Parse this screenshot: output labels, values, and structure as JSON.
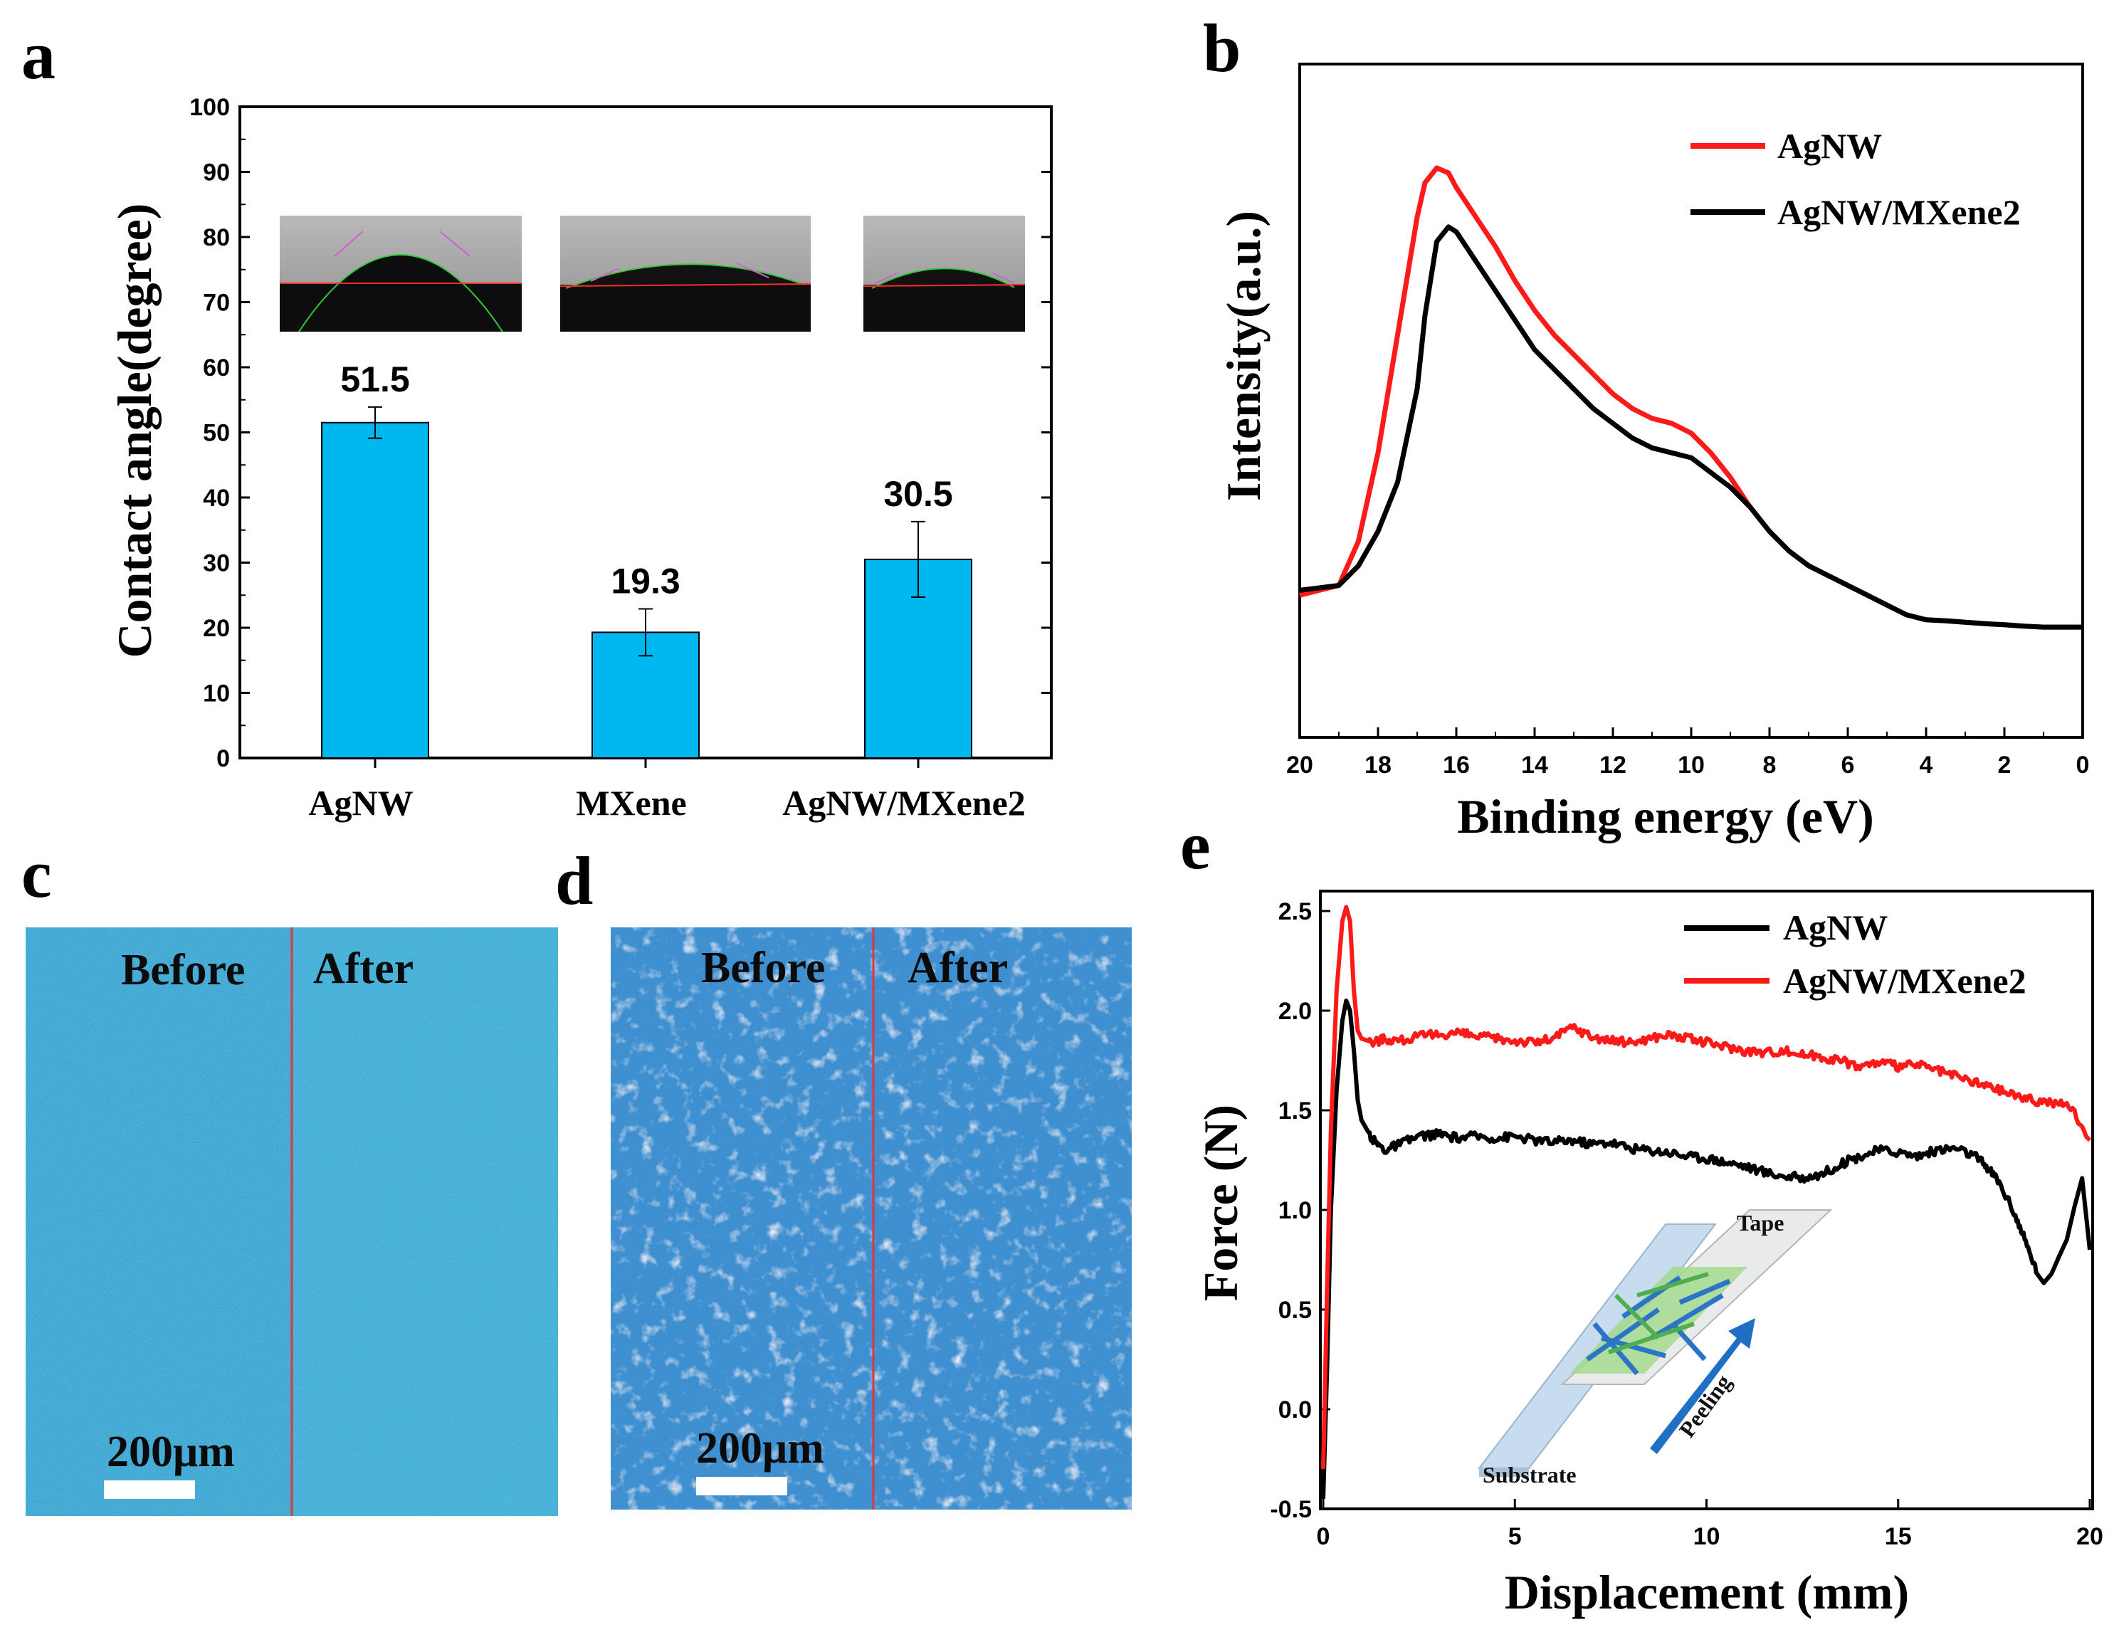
{
  "panels": {
    "a": "a",
    "b": "b",
    "c": "c",
    "d": "d",
    "e": "e"
  },
  "colors": {
    "bar_fill": "#00b7f0",
    "red": "#ff1a1a",
    "black": "#000000",
    "micro_blue": "#3aa6d2",
    "micro_blue_d": "#3b8fd0",
    "arrow_blue": "#1f6fc4"
  },
  "chart_data": [
    {
      "id": "a",
      "type": "bar",
      "title": "",
      "categories": [
        "AgNW",
        "MXene",
        "AgNW/MXene2"
      ],
      "values": [
        51.5,
        19.3,
        30.5
      ],
      "value_labels": [
        "51.5",
        "19.3",
        "30.5"
      ],
      "errors": [
        2.4,
        3.6,
        5.8
      ],
      "xlabel": "",
      "ylabel": "Contact angle(degree)",
      "ylim": [
        0,
        100
      ],
      "yticks": [
        0,
        10,
        20,
        30,
        40,
        50,
        60,
        70,
        80,
        90,
        100
      ],
      "insets": "droplet contact-angle photographs above each bar"
    },
    {
      "id": "b",
      "type": "line",
      "xlabel": "Binding energy (eV)",
      "ylabel": "Intensity(a.u.)",
      "xlim": [
        20,
        0
      ],
      "xticks": [
        20,
        18,
        16,
        14,
        12,
        10,
        8,
        6,
        4,
        2,
        0
      ],
      "ylim": [
        0,
        1.2
      ],
      "legend_position": "top-right",
      "series": [
        {
          "name": "AgNW",
          "color": "#ff1a1a",
          "x": [
            20,
            19.5,
            19,
            18.5,
            18,
            17.5,
            17,
            16.8,
            16.5,
            16.2,
            16,
            15.5,
            15,
            14.5,
            14,
            13.5,
            13,
            12.5,
            12,
            11.5,
            11,
            10.5,
            10,
            9.5,
            9,
            8.5,
            8,
            7.5,
            7,
            6.5,
            6,
            5.5,
            5,
            4.5,
            4,
            3.5,
            3,
            2.5,
            2,
            1.5,
            1,
            0.5,
            0
          ],
          "y": [
            0.13,
            0.14,
            0.15,
            0.24,
            0.42,
            0.66,
            0.9,
            0.97,
            1.0,
            0.99,
            0.96,
            0.9,
            0.84,
            0.77,
            0.71,
            0.66,
            0.62,
            0.58,
            0.54,
            0.51,
            0.49,
            0.48,
            0.46,
            0.42,
            0.37,
            0.31,
            0.26,
            0.22,
            0.19,
            0.17,
            0.15,
            0.13,
            0.11,
            0.09,
            0.08,
            0.078,
            0.075,
            0.072,
            0.07,
            0.067,
            0.065,
            0.065,
            0.065
          ]
        },
        {
          "name": "AgNW/MXene2",
          "color": "#000000",
          "x": [
            20,
            19.5,
            19,
            18.5,
            18,
            17.5,
            17,
            16.8,
            16.5,
            16.2,
            16,
            15.5,
            15,
            14.5,
            14,
            13.5,
            13,
            12.5,
            12,
            11.5,
            11,
            10.5,
            10,
            9.5,
            9,
            8.5,
            8,
            7.5,
            7,
            6.5,
            6,
            5.5,
            5,
            4.5,
            4,
            3.5,
            3,
            2.5,
            2,
            1.5,
            1,
            0.5,
            0
          ],
          "y": [
            0.14,
            0.145,
            0.15,
            0.19,
            0.26,
            0.36,
            0.55,
            0.7,
            0.85,
            0.88,
            0.87,
            0.81,
            0.75,
            0.69,
            0.63,
            0.59,
            0.55,
            0.51,
            0.48,
            0.45,
            0.43,
            0.42,
            0.41,
            0.38,
            0.35,
            0.31,
            0.26,
            0.22,
            0.19,
            0.17,
            0.15,
            0.13,
            0.11,
            0.09,
            0.08,
            0.078,
            0.075,
            0.072,
            0.07,
            0.067,
            0.065,
            0.065,
            0.065
          ]
        }
      ]
    },
    {
      "id": "e",
      "type": "line",
      "xlabel": "Displacement (mm)",
      "ylabel": "Force (N)",
      "xlim": [
        0,
        20
      ],
      "xticks": [
        0,
        5,
        10,
        15,
        20
      ],
      "ylim": [
        -0.5,
        2.6
      ],
      "yticks": [
        -0.5,
        0.0,
        0.5,
        1.0,
        1.5,
        2.0,
        2.5
      ],
      "ytick_labels": [
        "-0.5",
        "0.0",
        "0.5",
        "1.0",
        "1.5",
        "2.0",
        "2.5"
      ],
      "legend_position": "top-right",
      "series": [
        {
          "name": "AgNW",
          "color": "#000000",
          "x": [
            0,
            0.1,
            0.2,
            0.35,
            0.5,
            0.6,
            0.7,
            0.8,
            0.9,
            1.0,
            1.3,
            1.6,
            2.0,
            2.5,
            3,
            3.5,
            4,
            4.5,
            5,
            5.5,
            6,
            6.5,
            7,
            7.5,
            8,
            8.5,
            9,
            9.5,
            10,
            10.5,
            11,
            11.5,
            12,
            12.5,
            13,
            13.5,
            14,
            14.5,
            15,
            15.5,
            16,
            16.5,
            17,
            17.3,
            17.6,
            18,
            18.3,
            18.6,
            18.8,
            19.0,
            19.2,
            19.4,
            19.6,
            19.8,
            20
          ],
          "y": [
            -0.45,
            0.2,
            1.0,
            1.6,
            1.95,
            2.05,
            2.0,
            1.8,
            1.55,
            1.45,
            1.35,
            1.3,
            1.33,
            1.37,
            1.38,
            1.36,
            1.37,
            1.36,
            1.37,
            1.35,
            1.34,
            1.35,
            1.33,
            1.34,
            1.31,
            1.3,
            1.29,
            1.27,
            1.26,
            1.24,
            1.22,
            1.19,
            1.17,
            1.16,
            1.18,
            1.23,
            1.27,
            1.3,
            1.29,
            1.27,
            1.3,
            1.31,
            1.27,
            1.22,
            1.15,
            1.0,
            0.85,
            0.7,
            0.65,
            0.68,
            0.75,
            0.85,
            1.0,
            1.15,
            0.8
          ]
        },
        {
          "name": "AgNW/MXene2",
          "color": "#ff1a1a",
          "x": [
            0,
            0.1,
            0.2,
            0.35,
            0.5,
            0.6,
            0.7,
            0.8,
            0.9,
            1.0,
            1.3,
            1.6,
            2.0,
            2.5,
            3,
            3.5,
            4,
            4.5,
            5,
            5.5,
            6,
            6.5,
            7,
            7.5,
            8,
            8.5,
            9,
            9.5,
            10,
            10.5,
            11,
            11.5,
            12,
            12.5,
            13,
            13.5,
            14,
            14.5,
            15,
            15.5,
            16,
            16.5,
            17,
            17.5,
            18,
            18.5,
            19,
            19.5,
            20
          ],
          "y": [
            -0.3,
            0.6,
            1.4,
            2.1,
            2.45,
            2.52,
            2.45,
            2.1,
            1.9,
            1.86,
            1.84,
            1.86,
            1.85,
            1.87,
            1.88,
            1.89,
            1.87,
            1.86,
            1.85,
            1.84,
            1.86,
            1.92,
            1.87,
            1.85,
            1.84,
            1.86,
            1.88,
            1.86,
            1.84,
            1.82,
            1.8,
            1.79,
            1.8,
            1.78,
            1.77,
            1.75,
            1.72,
            1.74,
            1.72,
            1.73,
            1.7,
            1.67,
            1.64,
            1.61,
            1.58,
            1.55,
            1.54,
            1.52,
            1.35
          ]
        }
      ]
    }
  ],
  "photo_c": {
    "before": "Before",
    "after": "After",
    "scale": "200μm"
  },
  "photo_d": {
    "before": "Before",
    "after": "After",
    "scale": "200μm"
  },
  "inset_e": {
    "tape": "Tape",
    "substrate": "Substrate",
    "peeling": "Peeling"
  }
}
